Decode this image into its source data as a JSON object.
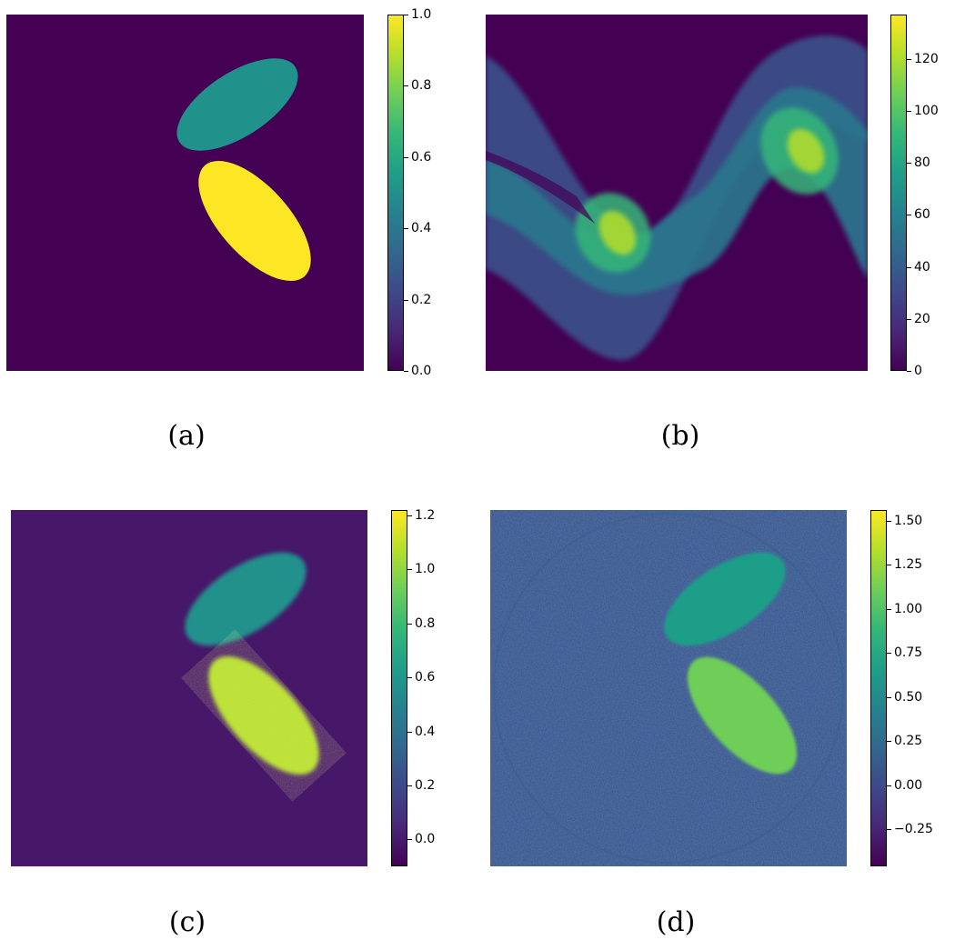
{
  "figure": {
    "colormap": "viridis",
    "colormap_stops": [
      "#440154",
      "#482878",
      "#3e4989",
      "#31688e",
      "#26828e",
      "#1f9e89",
      "#35b779",
      "#6ece58",
      "#b5de2b",
      "#fde725"
    ]
  },
  "chart_data": [
    {
      "type": "heatmap",
      "caption": "(a)",
      "description_values": {
        "background": 0.0,
        "upper_ellipse": 0.5,
        "lower_ellipse": 1.0
      },
      "colorbar": {
        "min": 0.0,
        "max": 1.0,
        "ticks": [
          "0.0",
          "0.2",
          "0.4",
          "0.6",
          "0.8",
          "1.0"
        ],
        "tick_values": [
          0.0,
          0.2,
          0.4,
          0.6,
          0.8,
          1.0
        ]
      }
    },
    {
      "type": "heatmap",
      "caption": "(b)",
      "colorbar": {
        "min": 0,
        "max": 137,
        "ticks": [
          "0",
          "20",
          "40",
          "60",
          "80",
          "100",
          "120"
        ],
        "tick_values": [
          0,
          20,
          40,
          60,
          80,
          100,
          120
        ]
      }
    },
    {
      "type": "heatmap",
      "caption": "(c)",
      "colorbar": {
        "min": -0.1,
        "max": 1.22,
        "ticks": [
          "0.0",
          "0.2",
          "0.4",
          "0.6",
          "0.8",
          "1.0",
          "1.2"
        ],
        "tick_values": [
          0.0,
          0.2,
          0.4,
          0.6,
          0.8,
          1.0,
          1.2
        ]
      }
    },
    {
      "type": "heatmap",
      "caption": "(d)",
      "colorbar": {
        "min": -0.46,
        "max": 1.56,
        "ticks": [
          "−0.25",
          "0.00",
          "0.25",
          "0.50",
          "0.75",
          "1.00",
          "1.25",
          "1.50"
        ],
        "tick_values": [
          -0.25,
          0.0,
          0.25,
          0.5,
          0.75,
          1.0,
          1.25,
          1.5
        ]
      }
    }
  ]
}
